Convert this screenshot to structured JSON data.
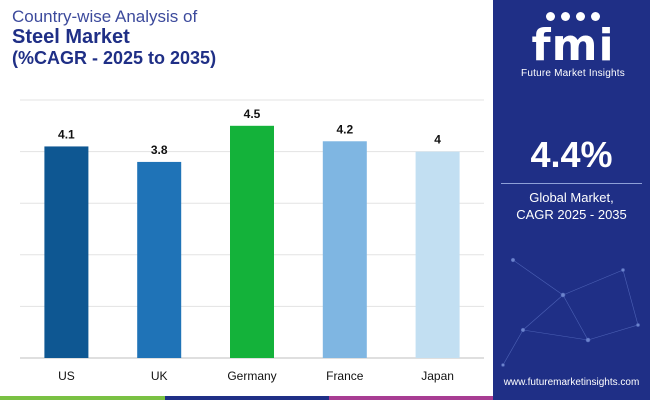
{
  "title": {
    "line1": "Country-wise Analysis of",
    "line2": "Steel Market",
    "line3": "(%CAGR - 2025 to 2035)"
  },
  "chart_data": {
    "type": "bar",
    "categories": [
      "US",
      "UK",
      "Germany",
      "France",
      "Japan"
    ],
    "values": [
      4.1,
      3.8,
      4.5,
      4.2,
      4
    ],
    "value_labels": [
      "4.1",
      "3.8",
      "4.5",
      "4.2",
      "4"
    ],
    "colors": [
      "#0e5792",
      "#1f73b7",
      "#14b23a",
      "#7fb6e2",
      "#c2dff2"
    ],
    "ylim": [
      0,
      5
    ],
    "grid": true,
    "legend": "none"
  },
  "sidebar": {
    "logo_text": "fmi",
    "logo_sub": "Future Market Insights",
    "big_value": "4.4%",
    "note_line1": "Global Market,",
    "note_line2": "CAGR 2025 - 2035",
    "url": "www.futuremarketinsights.com"
  },
  "colors": {
    "sidebar_bg": "#1f2f86",
    "title": "#1f2f86",
    "accent_bar": [
      "#7ac143",
      "#1f2f86",
      "#a83d93"
    ]
  }
}
